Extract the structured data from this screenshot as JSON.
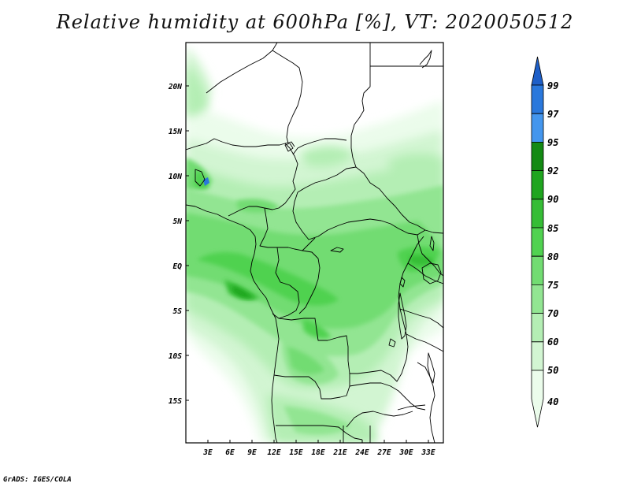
{
  "title": "Relative humidity at 600hPa [%], VT: 2020050512",
  "credit": "GrADS: IGES/COLA",
  "lat_labels": [
    "20N",
    "15N",
    "10N",
    "5N",
    "EQ",
    "5S",
    "10S",
    "15S"
  ],
  "lon_labels": [
    "3E",
    "6E",
    "9E",
    "12E",
    "15E",
    "18E",
    "21E",
    "24E",
    "27E",
    "30E",
    "33E"
  ],
  "colorbar": {
    "levels": [
      "99",
      "97",
      "95",
      "92",
      "90",
      "85",
      "80",
      "75",
      "70",
      "60",
      "50",
      "40"
    ],
    "colors": [
      "#1e5fc8",
      "#2a78dc",
      "#4496ee",
      "#138a13",
      "#1fa51f",
      "#36bd36",
      "#50d250",
      "#72dc72",
      "#92e592",
      "#b4eeb4",
      "#d2f5d2",
      "#ebfceb"
    ]
  }
}
